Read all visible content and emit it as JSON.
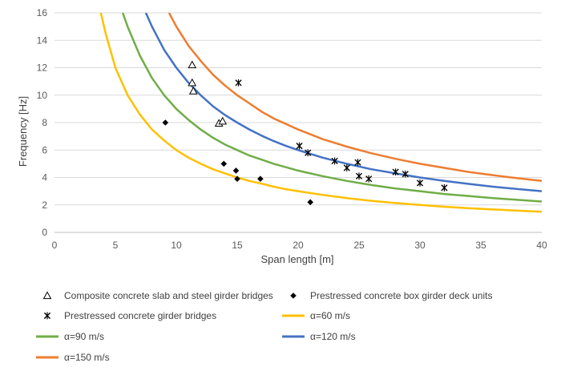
{
  "chart_data": {
    "type": "line",
    "xlabel": "Span length [m]",
    "ylabel": "Frequency [Hz]",
    "xlim": [
      0,
      40
    ],
    "ylim": [
      0,
      16
    ],
    "x_ticks": [
      "0",
      "5",
      "10",
      "15",
      "20",
      "25",
      "30",
      "35",
      "40"
    ],
    "y_ticks": [
      "0",
      "2",
      "4",
      "6",
      "8",
      "10",
      "12",
      "14",
      "16"
    ],
    "grid": "horizontal",
    "legend_position": "bottom",
    "series": [
      {
        "name": "α=60 m/s",
        "color": "#ffc000",
        "kind": "line",
        "x": [
          3.8,
          4.2,
          5,
          6,
          7,
          8,
          9,
          10,
          11,
          12,
          13,
          14,
          15,
          16,
          17,
          18,
          19,
          20,
          22,
          24,
          26,
          28,
          30,
          32,
          34,
          36,
          38,
          40
        ],
        "y": [
          16,
          14.5,
          12.0,
          10.0,
          8.6,
          7.5,
          6.7,
          6.0,
          5.45,
          5.0,
          4.6,
          4.3,
          4.0,
          3.75,
          3.55,
          3.33,
          3.15,
          3.0,
          2.73,
          2.5,
          2.3,
          2.14,
          2.0,
          1.87,
          1.76,
          1.67,
          1.58,
          1.5
        ]
      },
      {
        "name": "α=90 m/s",
        "color": "#70ad47",
        "kind": "line",
        "x": [
          5.6,
          6,
          7,
          8,
          9,
          10,
          11,
          12,
          13,
          14,
          15,
          16,
          17,
          18,
          19,
          20,
          22,
          24,
          26,
          28,
          30,
          32,
          34,
          36,
          38,
          40
        ],
        "y": [
          16,
          15.0,
          12.9,
          11.25,
          10.0,
          9.0,
          8.2,
          7.5,
          6.9,
          6.4,
          6.0,
          5.6,
          5.3,
          5.0,
          4.75,
          4.5,
          4.1,
          3.75,
          3.45,
          3.2,
          3.0,
          2.8,
          2.65,
          2.5,
          2.37,
          2.25
        ]
      },
      {
        "name": "α=120 m/s",
        "color": "#4472c4",
        "kind": "line",
        "x": [
          7.5,
          8,
          9,
          10,
          11,
          12,
          13,
          14,
          15,
          16,
          17,
          18,
          19,
          20,
          22,
          24,
          26,
          28,
          30,
          32,
          34,
          36,
          38,
          40
        ],
        "y": [
          16,
          15.0,
          13.3,
          12.0,
          10.9,
          10.0,
          9.2,
          8.55,
          8.0,
          7.5,
          7.05,
          6.65,
          6.3,
          6.0,
          5.45,
          5.0,
          4.6,
          4.3,
          4.0,
          3.75,
          3.53,
          3.33,
          3.16,
          3.0
        ]
      },
      {
        "name": "α=150 m/s",
        "color": "#ed7d31",
        "kind": "line",
        "x": [
          9.4,
          10,
          11,
          12,
          13,
          14,
          15,
          16,
          17,
          18,
          19,
          20,
          22,
          24,
          26,
          28,
          30,
          32,
          34,
          36,
          38,
          40
        ],
        "y": [
          16,
          15.0,
          13.6,
          12.5,
          11.5,
          10.7,
          10.0,
          9.4,
          8.8,
          8.3,
          7.9,
          7.5,
          6.8,
          6.25,
          5.77,
          5.36,
          5.0,
          4.7,
          4.4,
          4.17,
          3.95,
          3.75
        ]
      },
      {
        "name": "Composite concrete slab and steel girder bridges",
        "color": "#000000",
        "kind": "triangle",
        "x": [
          11.3,
          11.3,
          11.4,
          13.5,
          13.8
        ],
        "y": [
          12.2,
          10.9,
          10.3,
          7.95,
          8.1
        ]
      },
      {
        "name": "Prestressed concrete box girder deck units",
        "color": "#000000",
        "kind": "diamond",
        "x": [
          9.1,
          13.9,
          14.9,
          15.0,
          16.9,
          21.0
        ],
        "y": [
          8.0,
          5.0,
          4.5,
          3.9,
          3.9,
          2.2
        ]
      },
      {
        "name": "Prestressed concrete girder bridges",
        "color": "#000000",
        "kind": "star",
        "x": [
          15.1,
          20.1,
          20.8,
          23.0,
          24.0,
          24.9,
          25.0,
          25.8,
          28.0,
          28.8,
          30.0,
          32.0
        ],
        "y": [
          10.9,
          6.3,
          5.8,
          5.2,
          4.7,
          5.1,
          4.1,
          3.9,
          4.4,
          4.25,
          3.6,
          3.25
        ]
      }
    ]
  }
}
